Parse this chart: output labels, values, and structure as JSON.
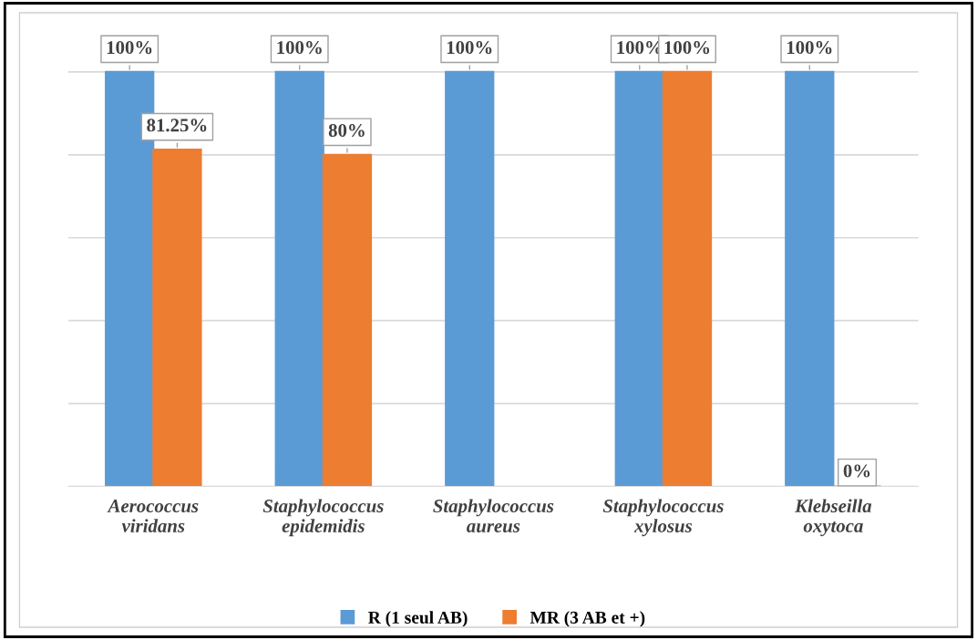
{
  "chart_data": {
    "type": "bar",
    "categories": [
      "Aerococcus\nviridans",
      "Staphylococcus\nepidemidis",
      "Staphylococcus\naureus",
      "Staphylococcus\nxylosus",
      "Klebseilla\noxytoca"
    ],
    "series": [
      {
        "name": "R (1 seul AB)",
        "color": "#5b9bd5",
        "values": [
          100,
          100,
          100,
          100,
          100
        ],
        "value_labels": [
          "100%",
          "100%",
          "100%",
          "100%",
          "100%"
        ]
      },
      {
        "name": "MR (3 AB et +)",
        "color": "#ed7d31",
        "values": [
          81.25,
          80,
          null,
          100,
          0
        ],
        "value_labels": [
          "81.25%",
          "80%",
          null,
          "100%",
          "0%"
        ]
      }
    ],
    "tick_labels": "x",
    "grid": "y",
    "legend": "bottom"
  }
}
